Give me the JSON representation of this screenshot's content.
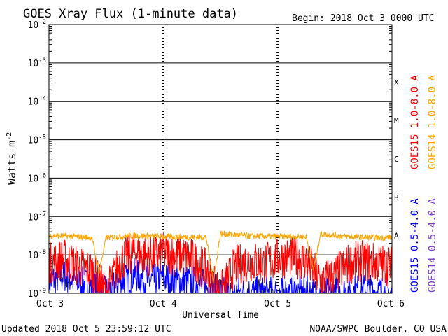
{
  "chart_data": {
    "type": "line",
    "title": "GOES Xray Flux (1-minute data)",
    "begin_label": "Begin:  2018 Oct 3 0000 UTC",
    "xlabel": "Universal Time",
    "ylabel_main": "Watts m",
    "ylabel_exp": "-2",
    "x_ticks": [
      "Oct 3",
      "Oct 4",
      "Oct 5",
      "Oct 6"
    ],
    "xlim": [
      "2018-10-03",
      "2018-10-06"
    ],
    "y_scale": "log",
    "ylim": [
      1e-09,
      0.01
    ],
    "y_ticks": [
      {
        "value": 1e-09,
        "base": "10",
        "exp": "-9"
      },
      {
        "value": 1e-08,
        "base": "10",
        "exp": "-8"
      },
      {
        "value": 1e-07,
        "base": "10",
        "exp": "-7"
      },
      {
        "value": 1e-06,
        "base": "10",
        "exp": "-6"
      },
      {
        "value": 1e-05,
        "base": "10",
        "exp": "-5"
      },
      {
        "value": 0.0001,
        "base": "10",
        "exp": "-4"
      },
      {
        "value": 0.001,
        "base": "10",
        "exp": "-3"
      },
      {
        "value": 0.01,
        "base": "10",
        "exp": "-2"
      }
    ],
    "flare_classes": [
      {
        "label": "A",
        "value": 1e-08
      },
      {
        "label": "B",
        "value": 1e-07
      },
      {
        "label": "C",
        "value": 1e-06
      },
      {
        "label": "M",
        "value": 1e-05
      },
      {
        "label": "X",
        "value": 0.0001
      }
    ],
    "grid": true,
    "series": [
      {
        "name": "GOES15 1.0-8.0 A",
        "color": "#ff0000",
        "points": [
          [
            "2018-10-03T00:00",
            6e-09
          ],
          [
            "2018-10-03T03:00",
            8e-09
          ],
          [
            "2018-10-03T06:00",
            5e-09
          ],
          [
            "2018-10-03T09:00",
            4e-09
          ],
          [
            "2018-10-03T12:00",
            1e-09
          ],
          [
            "2018-10-03T15:00",
            7e-09
          ],
          [
            "2018-10-03T18:00",
            1.2e-08
          ],
          [
            "2018-10-03T21:00",
            9e-09
          ],
          [
            "2018-10-04T00:00",
            1.1e-08
          ],
          [
            "2018-10-04T03:00",
            1e-08
          ],
          [
            "2018-10-04T06:00",
            8e-09
          ],
          [
            "2018-10-04T09:00",
            4e-09
          ],
          [
            "2018-10-04T12:00",
            1e-09
          ],
          [
            "2018-10-04T15:00",
            5e-09
          ],
          [
            "2018-10-04T18:00",
            7e-09
          ],
          [
            "2018-10-04T21:00",
            6e-09
          ],
          [
            "2018-10-05T00:00",
            8e-09
          ],
          [
            "2018-10-05T03:00",
            9e-09
          ],
          [
            "2018-10-05T06:00",
            7e-09
          ],
          [
            "2018-10-05T09:00",
            2e-09
          ],
          [
            "2018-10-05T12:00",
            3e-09
          ],
          [
            "2018-10-05T15:00",
            6e-09
          ],
          [
            "2018-10-05T18:00",
            7e-09
          ],
          [
            "2018-10-05T21:00",
            6e-09
          ],
          [
            "2018-10-06T00:00",
            5e-09
          ]
        ]
      },
      {
        "name": "GOES14 1.0-8.0 A",
        "color": "#ffa500",
        "points": [
          [
            "2018-10-03T00:00",
            3.2e-08
          ],
          [
            "2018-10-03T06:00",
            3e-08
          ],
          [
            "2018-10-03T09:00",
            2.8e-08
          ],
          [
            "2018-10-03T10:30",
            3.5e-09
          ],
          [
            "2018-10-03T12:00",
            2.8e-08
          ],
          [
            "2018-10-03T18:00",
            3.2e-08
          ],
          [
            "2018-10-04T00:00",
            3e-08
          ],
          [
            "2018-10-04T06:00",
            2.9e-08
          ],
          [
            "2018-10-04T09:00",
            2.9e-08
          ],
          [
            "2018-10-04T10:30",
            2e-09
          ],
          [
            "2018-10-04T12:00",
            3.6e-08
          ],
          [
            "2018-10-04T18:00",
            3.1e-08
          ],
          [
            "2018-10-05T00:00",
            3e-08
          ],
          [
            "2018-10-05T06:00",
            3e-08
          ],
          [
            "2018-10-05T07:30",
            4e-09
          ],
          [
            "2018-10-05T09:00",
            3.5e-08
          ],
          [
            "2018-10-05T15:00",
            3e-08
          ],
          [
            "2018-10-05T21:00",
            2.8e-08
          ],
          [
            "2018-10-06T00:00",
            2.9e-08
          ]
        ]
      },
      {
        "name": "GOES15 0.5-4.0 A",
        "color": "#0000ff",
        "points": [
          [
            "2018-10-03T00:00",
            2e-09
          ],
          [
            "2018-10-03T03:00",
            3e-09
          ],
          [
            "2018-10-03T06:00",
            2e-09
          ],
          [
            "2018-10-03T09:00",
            1.5e-09
          ],
          [
            "2018-10-03T12:00",
            1e-09
          ],
          [
            "2018-10-03T15:00",
            2e-09
          ],
          [
            "2018-10-03T18:00",
            3e-09
          ],
          [
            "2018-10-03T21:00",
            2e-09
          ],
          [
            "2018-10-04T00:00",
            2.5e-09
          ],
          [
            "2018-10-04T03:00",
            2e-09
          ],
          [
            "2018-10-04T06:00",
            2e-09
          ],
          [
            "2018-10-04T09:00",
            1.5e-09
          ],
          [
            "2018-10-04T12:00",
            1e-09
          ],
          [
            "2018-10-04T18:00",
            1e-09
          ],
          [
            "2018-10-05T00:00",
            1e-09
          ],
          [
            "2018-10-05T06:00",
            1e-09
          ],
          [
            "2018-10-05T12:00",
            1e-09
          ],
          [
            "2018-10-05T18:00",
            1.2e-09
          ],
          [
            "2018-10-06T00:00",
            1e-09
          ]
        ]
      },
      {
        "name": "GOES14 0.5-4.0 A",
        "color": "#7b3fc4",
        "points": []
      }
    ]
  },
  "footer": {
    "updated": "Updated 2018 Oct  5 23:59:12 UTC",
    "credit": "NOAA/SWPC Boulder, CO USA"
  }
}
